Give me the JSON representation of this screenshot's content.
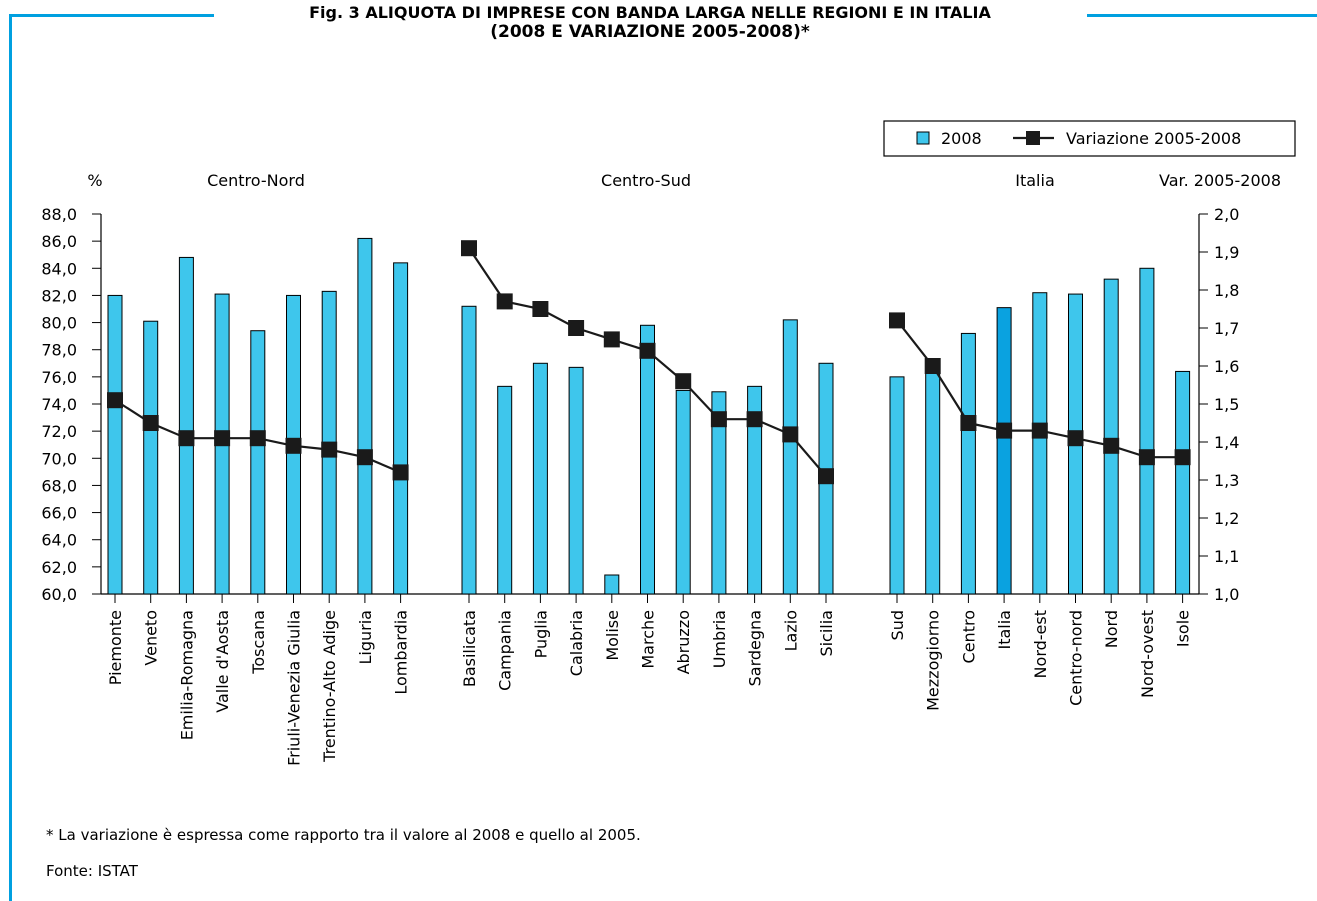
{
  "header": {
    "title_line1": "Fig. 3 ALIQUOTA DI IMPRESE CON BANDA LARGA NELLE REGIONI E IN ITALIA",
    "title_line2": "(2008 E VARIAZIONE 2005-2008)*"
  },
  "footer": {
    "footnote": "* La variazione è espressa come rapporto tra il valore al 2008 e quello al 2005.",
    "source": "Fonte: ISTAT"
  },
  "colors": {
    "bar": "#3ec6ec",
    "bar_highlight": "#0aa2e0",
    "line": "#1a1a1a",
    "frame": "#00a0e0"
  },
  "chart_data": {
    "type": "bar+line",
    "left_axis_label": "%",
    "right_axis_label": "Var. 2005-2008",
    "y_left": {
      "lim": [
        60,
        88
      ],
      "step": 2,
      "ticks": [
        "60,0",
        "62,0",
        "64,0",
        "66,0",
        "68,0",
        "70,0",
        "72,0",
        "74,0",
        "76,0",
        "78,0",
        "80,0",
        "82,0",
        "84,0",
        "86,0",
        "88,0"
      ]
    },
    "y_right": {
      "lim": [
        1.0,
        2.0
      ],
      "step": 0.1,
      "ticks": [
        "1,0",
        "1,1",
        "1,2",
        "1,3",
        "1,4",
        "1,5",
        "1,6",
        "1,7",
        "1,8",
        "1,9",
        "2,0"
      ]
    },
    "legend": {
      "bar": "2008",
      "line": "Variazione 2005-2008",
      "position": "top-right"
    },
    "groups": [
      {
        "name": "Centro-Nord",
        "categories": [
          "Piemonte",
          "Veneto",
          "Emilia-Romagna",
          "Valle d'Aosta",
          "Toscana",
          "Friuli-Venezia Giulia",
          "Trentino-Alto Adige",
          "Liguria",
          "Lombardia"
        ],
        "bar_values": [
          82.0,
          80.1,
          84.8,
          82.1,
          79.4,
          82.0,
          82.3,
          86.2,
          84.4
        ],
        "line_values": [
          1.51,
          1.45,
          1.41,
          1.41,
          1.41,
          1.39,
          1.38,
          1.36,
          1.32
        ]
      },
      {
        "name": "Centro-Sud",
        "categories": [
          "Basilicata",
          "Campania",
          "Puglia",
          "Calabria",
          "Molise",
          "Marche",
          "Abruzzo",
          "Umbria",
          "Sardegna",
          "Lazio",
          "Sicilia"
        ],
        "bar_values": [
          81.2,
          75.3,
          77.0,
          76.7,
          61.4,
          79.8,
          75.0,
          74.9,
          75.3,
          80.2,
          77.0
        ],
        "line_values": [
          1.91,
          1.77,
          1.75,
          1.7,
          1.67,
          1.64,
          1.56,
          1.46,
          1.46,
          1.42,
          1.31
        ]
      },
      {
        "name": "Italia",
        "categories": [
          "Sud",
          "Mezzogiorno",
          "Centro",
          "Italia",
          "Nord-est",
          "Centro-nord",
          "Nord",
          "Nord-ovest",
          "Isole"
        ],
        "bar_values": [
          76.0,
          76.4,
          79.2,
          81.1,
          82.2,
          82.1,
          83.2,
          84.0,
          76.4
        ],
        "line_values": [
          1.72,
          1.6,
          1.45,
          1.43,
          1.43,
          1.41,
          1.39,
          1.36,
          1.36
        ],
        "highlight_index": 3
      }
    ]
  }
}
